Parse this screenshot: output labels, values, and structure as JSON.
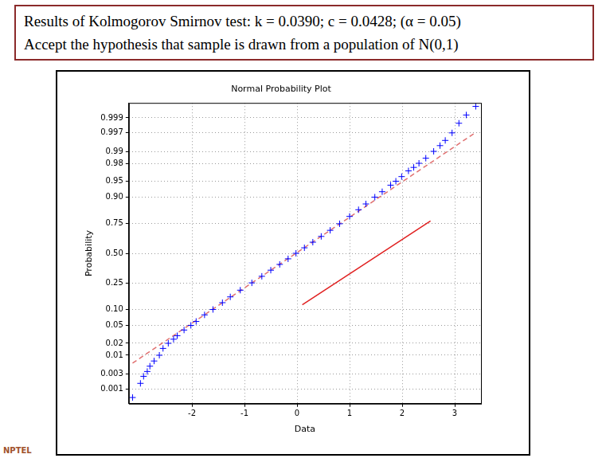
{
  "header": {
    "lines": [
      "Results of Kolmogorov Smirnov test: k = 0.0390; c = 0.0428; (α = 0.05)",
      "Accept the hypothesis that sample is drawn from a population of N(0,1)"
    ]
  },
  "logo": "NPTEL",
  "chart_data": {
    "type": "probability",
    "title": "Normal Probability Plot",
    "x_label": "Data",
    "y_label": "Probability",
    "grid": true,
    "xlim": [
      -3.2,
      3.5
    ],
    "xticks": [
      -2,
      -1,
      0,
      1,
      2,
      3
    ],
    "ylim": [
      0.0003,
      0.9997
    ],
    "yticks": [
      0.001,
      0.003,
      0.01,
      0.02,
      0.05,
      {
        "value": 0.1,
        "label": "0.10"
      },
      0.25,
      {
        "value": 0.5,
        "label": "0.50"
      },
      0.75,
      {
        "value": 0.9,
        "label": "0.90"
      },
      0.95,
      0.98,
      0.99,
      0.997,
      0.999
    ],
    "series": [
      {
        "type": "scatter",
        "color": "#0000ff",
        "marker": "plus",
        "x": [
          -3.13,
          -2.98,
          -2.92,
          -2.85,
          -2.8,
          -2.72,
          -2.62,
          -2.55,
          -2.45,
          -2.35,
          -2.28,
          -2.15,
          -2.02,
          -1.92,
          -1.76,
          -1.6,
          -1.42,
          -1.27,
          -1.08,
          -0.86,
          -0.67,
          -0.5,
          -0.33,
          -0.17,
          -0.02,
          0.14,
          0.3,
          0.46,
          0.63,
          0.81,
          1.0,
          1.17,
          1.31,
          1.48,
          1.62,
          1.78,
          1.88,
          1.99,
          2.12,
          2.22,
          2.32,
          2.45,
          2.6,
          2.72,
          2.82,
          2.95,
          3.08,
          3.22,
          3.4
        ],
        "values": [
          0.0005,
          0.0015,
          0.0025,
          0.0035,
          0.005,
          0.007,
          0.01,
          0.015,
          0.02,
          0.025,
          0.03,
          0.04,
          0.05,
          0.06,
          0.08,
          0.1,
          0.13,
          0.16,
          0.2,
          0.25,
          0.3,
          0.35,
          0.4,
          0.45,
          0.5,
          0.55,
          0.6,
          0.65,
          0.7,
          0.75,
          0.8,
          0.84,
          0.87,
          0.9,
          0.92,
          0.94,
          0.95,
          0.96,
          0.97,
          0.975,
          0.98,
          0.985,
          0.99,
          0.993,
          0.995,
          0.997,
          0.9985,
          0.9992,
          0.9996
        ]
      },
      {
        "type": "line",
        "color": "#e07070",
        "line_style": "dashed",
        "x": [
          -3.13,
          3.4
        ],
        "values": [
          0.0061,
          0.9971
        ]
      },
      {
        "type": "line",
        "color": "#e02020",
        "line_style": "solid",
        "x": [
          0.1,
          2.54
        ],
        "values": [
          0.12,
          0.77
        ]
      }
    ]
  }
}
